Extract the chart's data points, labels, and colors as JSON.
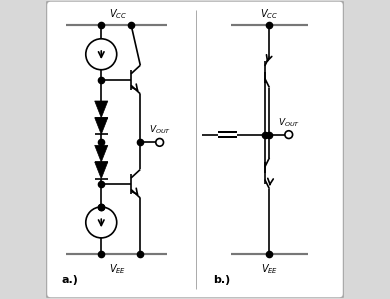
{
  "fig_width": 3.9,
  "fig_height": 2.99,
  "dpi": 100,
  "bg_color": "#d8d8d8",
  "inner_bg": "#ffffff",
  "line_color": "#000000",
  "line_width": 1.2,
  "dot_size": 4.5,
  "label_a": "a.)",
  "label_b": "b.)"
}
